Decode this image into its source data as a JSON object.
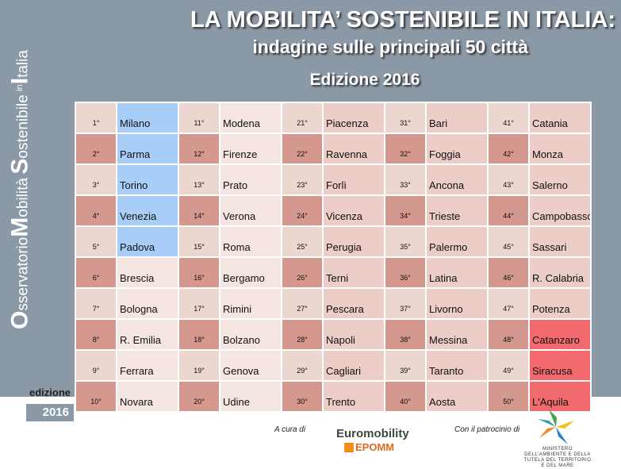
{
  "header": {
    "title": "LA MOBILITA’ SOSTENIBILE IN ITALIA:",
    "subtitle": "indagine sulle principali 50 città",
    "edition": "Edizione 2016"
  },
  "sidebar": {
    "vertical_title": {
      "o_big": "O",
      "o_rest": "sservatorio",
      "m_big": "M",
      "m_rest": "obilità",
      "s_big": "S",
      "s_rest": "ostenibile",
      "in": "in",
      "i_big": "I",
      "i_rest": "talia"
    },
    "edition_label": "edizione",
    "edition_year": "2016"
  },
  "ranking": {
    "columns": [
      [
        {
          "pos": "1°",
          "city": "Milano",
          "group": "blue"
        },
        {
          "pos": "2°",
          "city": "Parma",
          "group": "blue"
        },
        {
          "pos": "3°",
          "city": "Torino",
          "group": "blue"
        },
        {
          "pos": "4°",
          "city": "Venezia",
          "group": "blue"
        },
        {
          "pos": "5°",
          "city": "Padova",
          "group": "blue"
        },
        {
          "pos": "6°",
          "city": "Brescia",
          "group": "light"
        },
        {
          "pos": "7°",
          "city": "Bologna",
          "group": "light"
        },
        {
          "pos": "8°",
          "city": "R. Emilia",
          "group": "light"
        },
        {
          "pos": "9°",
          "city": "Ferrara",
          "group": "light"
        },
        {
          "pos": "10°",
          "city": "Novara",
          "group": "light"
        }
      ],
      [
        {
          "pos": "11°",
          "city": "Modena",
          "group": "light"
        },
        {
          "pos": "12°",
          "city": "Firenze",
          "group": "light"
        },
        {
          "pos": "13°",
          "city": "Prato",
          "group": "light"
        },
        {
          "pos": "14°",
          "city": "Verona",
          "group": "light"
        },
        {
          "pos": "15°",
          "city": "Roma",
          "group": "light"
        },
        {
          "pos": "16°",
          "city": "Bergamo",
          "group": "light"
        },
        {
          "pos": "17°",
          "city": "Rimini",
          "group": "light"
        },
        {
          "pos": "18°",
          "city": "Bolzano",
          "group": "light"
        },
        {
          "pos": "19°",
          "city": "Genova",
          "group": "light"
        },
        {
          "pos": "20°",
          "city": "Udine",
          "group": "light"
        }
      ],
      [
        {
          "pos": "21°",
          "city": "Piacenza",
          "group": "mid"
        },
        {
          "pos": "22°",
          "city": "Ravenna",
          "group": "mid"
        },
        {
          "pos": "23°",
          "city": "Forlì",
          "group": "mid"
        },
        {
          "pos": "24°",
          "city": "Vicenza",
          "group": "mid"
        },
        {
          "pos": "25°",
          "city": "Perugia",
          "group": "mid"
        },
        {
          "pos": "26°",
          "city": "Terni",
          "group": "mid"
        },
        {
          "pos": "27°",
          "city": "Pescara",
          "group": "mid"
        },
        {
          "pos": "28°",
          "city": "Napoli",
          "group": "mid"
        },
        {
          "pos": "29°",
          "city": "Cagliari",
          "group": "mid"
        },
        {
          "pos": "30°",
          "city": "Trento",
          "group": "mid"
        }
      ],
      [
        {
          "pos": "31°",
          "city": "Bari",
          "group": "mid"
        },
        {
          "pos": "32°",
          "city": "Foggia",
          "group": "mid"
        },
        {
          "pos": "33°",
          "city": "Ancona",
          "group": "mid"
        },
        {
          "pos": "34°",
          "city": "Trieste",
          "group": "mid"
        },
        {
          "pos": "35°",
          "city": "Palermo",
          "group": "mid"
        },
        {
          "pos": "36°",
          "city": "Latina",
          "group": "mid"
        },
        {
          "pos": "37°",
          "city": "Livorno",
          "group": "mid"
        },
        {
          "pos": "38°",
          "city": "Messina",
          "group": "mid"
        },
        {
          "pos": "39°",
          "city": "Taranto",
          "group": "mid"
        },
        {
          "pos": "40°",
          "city": "Aosta",
          "group": "mid"
        }
      ],
      [
        {
          "pos": "41°",
          "city": "Catania",
          "group": "mid"
        },
        {
          "pos": "42°",
          "city": "Monza",
          "group": "mid"
        },
        {
          "pos": "43°",
          "city": "Salerno",
          "group": "mid"
        },
        {
          "pos": "44°",
          "city": "Campobasso",
          "group": "mid"
        },
        {
          "pos": "45°",
          "city": "Sassari",
          "group": "mid"
        },
        {
          "pos": "46°",
          "city": "R. Calabria",
          "group": "mid"
        },
        {
          "pos": "47°",
          "city": "Potenza",
          "group": "mid"
        },
        {
          "pos": "48°",
          "city": "Catanzaro",
          "group": "bad"
        },
        {
          "pos": "49°",
          "city": "Siracusa",
          "group": "bad"
        },
        {
          "pos": "50°",
          "city": "L'Aquila",
          "group": "bad"
        }
      ]
    ],
    "colors": {
      "blue": "#a8cef8",
      "light": "#f5e6e2",
      "mid": "#eccdc7",
      "bad": "#f36a6e",
      "pos_light": "#ecd6d0",
      "pos_dark": "#d4988f"
    }
  },
  "footer": {
    "cura_label": "A cura di",
    "patrocinio_label": "Con il patrocinio di",
    "euromobility_name": "Euromobility",
    "epomm_name": "EPOMM",
    "ministero_text": "MINISTERO DELL'AMBIENTE E DELLA TUTELA DEL TERRITORIO E DEL MARE",
    "icons": [
      "euromobility-logo",
      "epomm-logo",
      "ministero-ambiente-logo"
    ]
  }
}
